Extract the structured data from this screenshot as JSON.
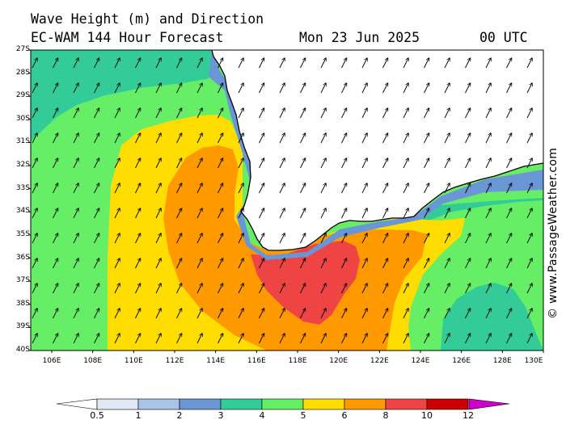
{
  "header": {
    "title": "Wave Height (m) and Direction",
    "subtitle": "EC-WAM 144 Hour Forecast",
    "date": "Mon 23 Jun 2025",
    "time": "00 UTC"
  },
  "map": {
    "lat_labels": [
      "27S",
      "28S",
      "29S",
      "30S",
      "31S",
      "32S",
      "33S",
      "34S",
      "35S",
      "36S",
      "37S",
      "38S",
      "39S",
      "40S"
    ],
    "lon_labels": [
      "106E",
      "108E",
      "110E",
      "112E",
      "114E",
      "116E",
      "118E",
      "120E",
      "122E",
      "124E",
      "126E",
      "128E",
      "130E"
    ],
    "wave_direction_arrows": "north-east",
    "credit": "© www.PassageWeather.com"
  },
  "colorbar": {
    "ticks": [
      "0.5",
      "1",
      "2",
      "3",
      "4",
      "5",
      "6",
      "8",
      "10",
      "12"
    ],
    "colors": [
      "#e0e8f4",
      "#a8c4e6",
      "#6b96d6",
      "#33cc99",
      "#66ee66",
      "#ffdd00",
      "#ff9900",
      "#ee4444",
      "#cc0000",
      "#cc00cc"
    ]
  },
  "colors": {
    "land": "#ffffff",
    "band_3_4": "#33cc99",
    "band_4_5": "#66ee66",
    "band_5_6": "#ffdd00",
    "band_6_8": "#ff9900",
    "band_8_10": "#ee4444"
  }
}
